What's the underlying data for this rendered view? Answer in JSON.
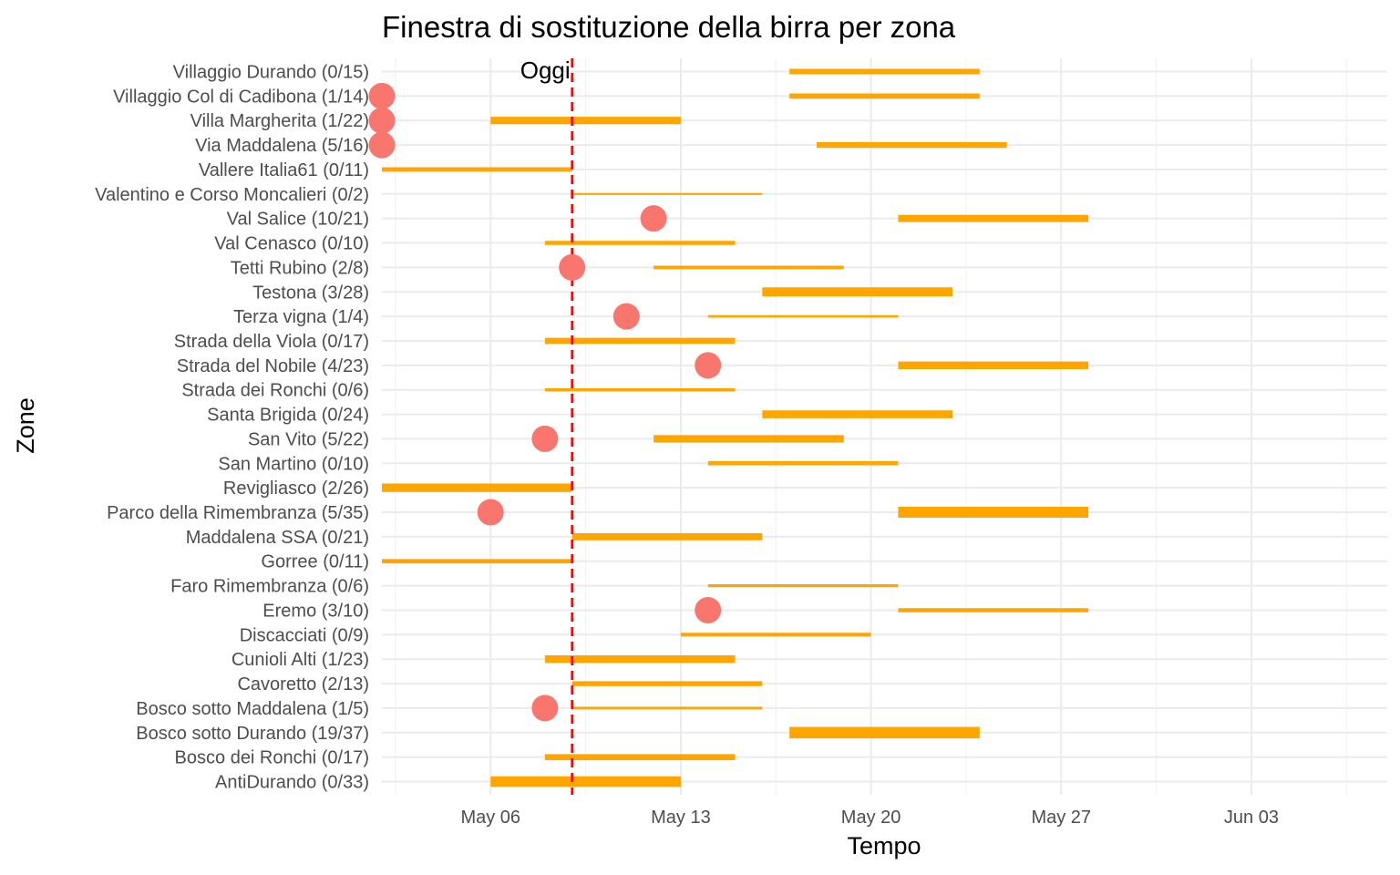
{
  "chart_data": {
    "type": "gantt",
    "title": "Finestra di sostituzione della birra per zona",
    "xlabel": "Tempo",
    "ylabel": "Zone",
    "x_ticks": [
      "May 06",
      "May 13",
      "May 20",
      "May 27",
      "Jun 03"
    ],
    "x_range": [
      "2024-05-02",
      "2024-06-08"
    ],
    "today": {
      "label": "Oggi",
      "date": "2024-05-09",
      "color": "#ff0000"
    },
    "bar_color": "#ffa500",
    "point_color": "#f8766d",
    "grid": true,
    "zones": [
      {
        "label": "Villaggio Durando (0/15)",
        "start": "2024-05-17",
        "end": "2024-05-24",
        "size": 15,
        "marker": null
      },
      {
        "label": "Villaggio Col di Cadibona (1/14)",
        "start": "2024-05-17",
        "end": "2024-05-24",
        "size": 14,
        "marker": "2024-05-02"
      },
      {
        "label": "Villa Margherita (1/22)",
        "start": "2024-05-06",
        "end": "2024-05-13",
        "size": 22,
        "marker": "2024-05-02"
      },
      {
        "label": "Via Maddalena (5/16)",
        "start": "2024-05-18",
        "end": "2024-05-25",
        "size": 16,
        "marker": "2024-05-02"
      },
      {
        "label": "Vallere Italia61 (0/11)",
        "start": "2024-05-02",
        "end": "2024-05-09",
        "size": 11,
        "marker": null
      },
      {
        "label": "Valentino e Corso Moncalieri (0/2)",
        "start": "2024-05-09",
        "end": "2024-05-16",
        "size": 2,
        "marker": null
      },
      {
        "label": "Val Salice (10/21)",
        "start": "2024-05-21",
        "end": "2024-05-28",
        "size": 21,
        "marker": "2024-05-12"
      },
      {
        "label": "Val Cenasco (0/10)",
        "start": "2024-05-08",
        "end": "2024-05-15",
        "size": 10,
        "marker": null
      },
      {
        "label": "Tetti Rubino (2/8)",
        "start": "2024-05-12",
        "end": "2024-05-19",
        "size": 8,
        "marker": "2024-05-09"
      },
      {
        "label": "Testona (3/28)",
        "start": "2024-05-16",
        "end": "2024-05-23",
        "size": 28,
        "marker": null
      },
      {
        "label": "Terza vigna (1/4)",
        "start": "2024-05-14",
        "end": "2024-05-21",
        "size": 4,
        "marker": "2024-05-11"
      },
      {
        "label": "Strada della Viola (0/17)",
        "start": "2024-05-08",
        "end": "2024-05-15",
        "size": 17,
        "marker": null
      },
      {
        "label": "Strada del Nobile (4/23)",
        "start": "2024-05-21",
        "end": "2024-05-28",
        "size": 23,
        "marker": "2024-05-14"
      },
      {
        "label": "Strada dei Ronchi (0/6)",
        "start": "2024-05-08",
        "end": "2024-05-15",
        "size": 6,
        "marker": null
      },
      {
        "label": "Santa Brigida (0/24)",
        "start": "2024-05-16",
        "end": "2024-05-23",
        "size": 24,
        "marker": null
      },
      {
        "label": "San Vito (5/22)",
        "start": "2024-05-12",
        "end": "2024-05-19",
        "size": 22,
        "marker": "2024-05-08"
      },
      {
        "label": "San Martino (0/10)",
        "start": "2024-05-14",
        "end": "2024-05-21",
        "size": 10,
        "marker": null
      },
      {
        "label": "Revigliasco (2/26)",
        "start": "2024-05-02",
        "end": "2024-05-09",
        "size": 26,
        "marker": null
      },
      {
        "label": "Parco della Rimembranza (5/35)",
        "start": "2024-05-21",
        "end": "2024-05-28",
        "size": 35,
        "marker": "2024-05-06"
      },
      {
        "label": "Maddalena SSA (0/21)",
        "start": "2024-05-09",
        "end": "2024-05-16",
        "size": 21,
        "marker": null
      },
      {
        "label": "Gorree (0/11)",
        "start": "2024-05-02",
        "end": "2024-05-09",
        "size": 11,
        "marker": null
      },
      {
        "label": "Faro Rimembranza (0/6)",
        "start": "2024-05-14",
        "end": "2024-05-21",
        "size": 6,
        "marker": null
      },
      {
        "label": "Eremo (3/10)",
        "start": "2024-05-21",
        "end": "2024-05-28",
        "size": 10,
        "marker": "2024-05-14"
      },
      {
        "label": "Discacciati (0/9)",
        "start": "2024-05-13",
        "end": "2024-05-20",
        "size": 9,
        "marker": null
      },
      {
        "label": "Cunioli Alti (1/23)",
        "start": "2024-05-08",
        "end": "2024-05-15",
        "size": 23,
        "marker": null
      },
      {
        "label": "Cavoretto (2/13)",
        "start": "2024-05-09",
        "end": "2024-05-16",
        "size": 13,
        "marker": null
      },
      {
        "label": "Bosco sotto Maddalena (1/5)",
        "start": "2024-05-09",
        "end": "2024-05-16",
        "size": 5,
        "marker": "2024-05-08"
      },
      {
        "label": "Bosco sotto Durando (19/37)",
        "start": "2024-05-17",
        "end": "2024-05-24",
        "size": 37,
        "marker": null
      },
      {
        "label": "Bosco dei Ronchi (0/17)",
        "start": "2024-05-08",
        "end": "2024-05-15",
        "size": 17,
        "marker": null
      },
      {
        "label": "AntiDurando (0/33)",
        "start": "2024-05-06",
        "end": "2024-05-13",
        "size": 33,
        "marker": null
      }
    ]
  }
}
